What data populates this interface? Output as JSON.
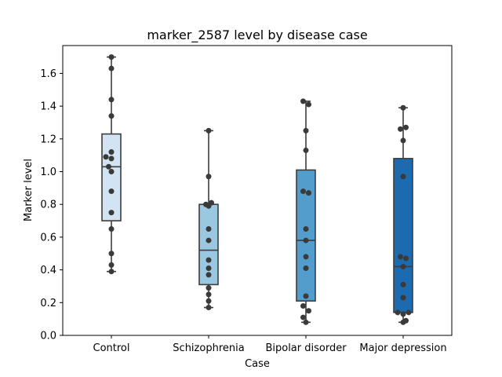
{
  "chart_data": {
    "type": "box",
    "title": "marker_2587 level by disease case",
    "xlabel": "Case",
    "ylabel": "Marker level",
    "ylim": [
      0,
      1.77
    ],
    "yticks": [
      0.0,
      0.2,
      0.4,
      0.6,
      0.8,
      1.0,
      1.2,
      1.4,
      1.6
    ],
    "ytick_labels": [
      "0.0",
      "0.2",
      "0.4",
      "0.6",
      "0.8",
      "1.0",
      "1.2",
      "1.4",
      "1.6"
    ],
    "categories": [
      "Control",
      "Schizophrenia",
      "Bipolar disorder",
      "Major depression"
    ],
    "boxes": [
      {
        "whisker_low": 0.39,
        "q1": 0.7,
        "median": 1.03,
        "q3": 1.23,
        "whisker_high": 1.7,
        "color": "#d2e3f3"
      },
      {
        "whisker_low": 0.17,
        "q1": 0.31,
        "median": 0.52,
        "q3": 0.8,
        "whisker_high": 1.25,
        "color": "#9ac8e0"
      },
      {
        "whisker_low": 0.08,
        "q1": 0.21,
        "median": 0.58,
        "q3": 1.01,
        "whisker_high": 1.43,
        "color": "#529dcc"
      },
      {
        "whisker_low": 0.08,
        "q1": 0.14,
        "median": 0.42,
        "q3": 1.08,
        "whisker_high": 1.39,
        "color": "#1c6aaf"
      }
    ],
    "points": [
      {
        "values": [
          1.7,
          1.63,
          1.44,
          1.34,
          1.12,
          1.09,
          1.08,
          1.03,
          1.0,
          0.88,
          0.75,
          0.65,
          0.5,
          0.43,
          0.39
        ],
        "offsets": [
          0,
          0,
          0,
          0,
          0,
          -2,
          0,
          -1,
          0,
          0,
          0,
          0,
          0,
          0,
          0
        ]
      },
      {
        "values": [
          1.25,
          0.97,
          0.81,
          0.8,
          0.79,
          0.65,
          0.58,
          0.46,
          0.41,
          0.37,
          0.29,
          0.25,
          0.21,
          0.17
        ],
        "offsets": [
          0,
          0,
          1,
          -1,
          0,
          0,
          0,
          0,
          0,
          0,
          0,
          0,
          0,
          0
        ]
      },
      {
        "values": [
          1.43,
          1.41,
          1.25,
          1.13,
          0.88,
          0.87,
          0.65,
          0.58,
          0.48,
          0.41,
          0.24,
          0.18,
          0.15,
          0.11,
          0.08
        ],
        "offsets": [
          -1,
          1,
          0,
          0,
          -1,
          1,
          0,
          0,
          0,
          0,
          0,
          -1,
          1,
          -1,
          0
        ]
      },
      {
        "values": [
          1.39,
          1.27,
          1.26,
          1.19,
          0.97,
          0.48,
          0.47,
          0.42,
          0.31,
          0.23,
          0.14,
          0.14,
          0.13,
          0.09,
          0.08
        ],
        "offsets": [
          0,
          1,
          -1,
          0,
          0,
          -1,
          1,
          0,
          0,
          0,
          -2,
          2,
          0,
          1,
          0
        ]
      }
    ]
  }
}
